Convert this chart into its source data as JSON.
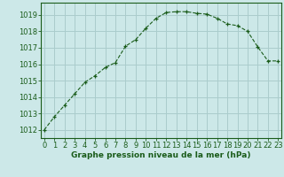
{
  "x": [
    0,
    1,
    2,
    3,
    4,
    5,
    6,
    7,
    8,
    9,
    10,
    11,
    12,
    13,
    14,
    15,
    16,
    17,
    18,
    19,
    20,
    21,
    22,
    23
  ],
  "y": [
    1012.0,
    1012.8,
    1013.5,
    1014.2,
    1014.9,
    1015.3,
    1015.8,
    1016.1,
    1017.1,
    1017.5,
    1018.2,
    1018.8,
    1019.15,
    1019.2,
    1019.2,
    1019.1,
    1019.05,
    1018.8,
    1018.45,
    1018.35,
    1018.0,
    1017.05,
    1016.2,
    1016.2
  ],
  "line_color": "#1a5c1a",
  "marker": "+",
  "bg_color": "#cce8e8",
  "grid_color": "#aacccc",
  "xlabel": "Graphe pression niveau de la mer (hPa)",
  "xlabel_color": "#1a5c1a",
  "tick_color": "#1a5c1a",
  "ylim": [
    1011.5,
    1019.75
  ],
  "yticks": [
    1012,
    1013,
    1014,
    1015,
    1016,
    1017,
    1018,
    1019
  ],
  "font_size": 6.0
}
